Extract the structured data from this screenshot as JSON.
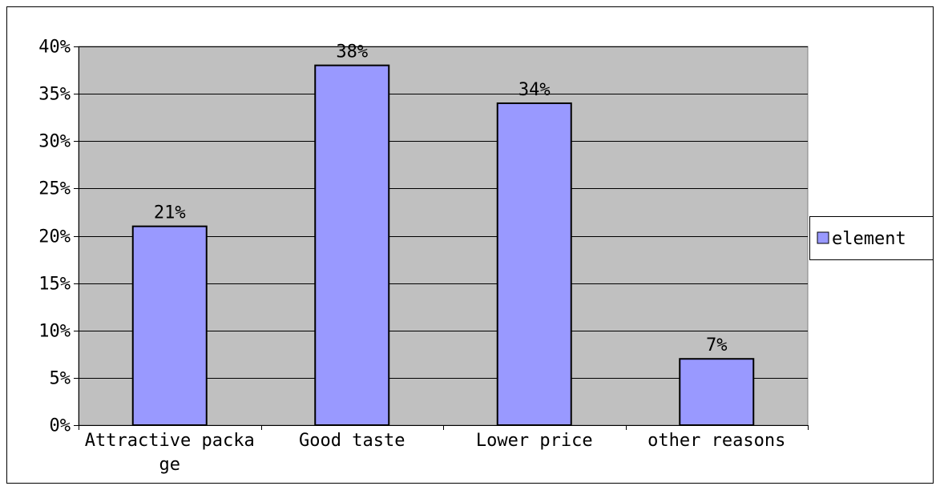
{
  "chart_data": {
    "type": "bar",
    "title": "",
    "xlabel": "",
    "ylabel": "",
    "categories": [
      "Attractive package",
      "Good taste",
      "Lower price",
      "other reasons"
    ],
    "category_label_lines": [
      [
        "Attractive packa",
        "ge"
      ],
      [
        "Good taste"
      ],
      [
        "Lower price"
      ],
      [
        "other reasons"
      ]
    ],
    "series": [
      {
        "name": "element",
        "values": [
          21,
          38,
          34,
          7
        ],
        "data_labels": [
          "21%",
          "38%",
          "34%",
          "7%"
        ]
      }
    ],
    "ylim": [
      0,
      40
    ],
    "y_ticks": [
      0,
      5,
      10,
      15,
      20,
      25,
      30,
      35,
      40
    ],
    "y_tick_labels": [
      "0%",
      "5%",
      "10%",
      "15%",
      "20%",
      "25%",
      "30%",
      "35%",
      "40%"
    ],
    "grid": true,
    "legend_position": "right",
    "colors": {
      "bar_fill": "#9999ff",
      "plot_background": "#c0c0c0",
      "outline": "#000000"
    }
  }
}
